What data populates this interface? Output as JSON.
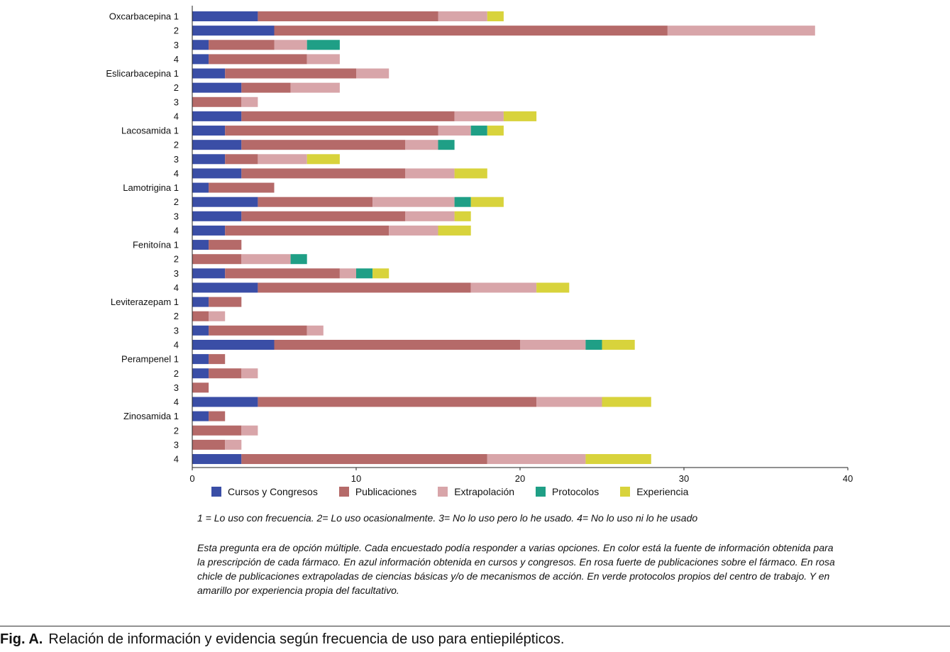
{
  "chart_data": {
    "type": "bar",
    "orientation": "horizontal",
    "stacked": true,
    "xlim": [
      0,
      40
    ],
    "xticks": [
      "0",
      "10",
      "20",
      "30",
      "40"
    ],
    "grid": false,
    "legend_position": "bottom",
    "series": [
      {
        "name": "Cursos y Congresos",
        "color": "#3a4ea6"
      },
      {
        "name": "Publicaciones",
        "color": "#b56a69"
      },
      {
        "name": "Extrapolación",
        "color": "#d8a5a9"
      },
      {
        "name": "Protocolos",
        "color": "#1f9f86"
      },
      {
        "name": "Experiencia",
        "color": "#d8d33c"
      }
    ],
    "groups": [
      {
        "drug": "Oxcarbacepina",
        "rows": [
          {
            "level": "1",
            "values": [
              4,
              11,
              3,
              0,
              1
            ]
          },
          {
            "level": "2",
            "values": [
              5,
              24,
              9,
              0,
              0
            ]
          },
          {
            "level": "3",
            "values": [
              1,
              4,
              2,
              2,
              0
            ]
          },
          {
            "level": "4",
            "values": [
              1,
              6,
              2,
              0,
              0
            ]
          }
        ]
      },
      {
        "drug": "Eslicarbacepina",
        "rows": [
          {
            "level": "1",
            "values": [
              2,
              8,
              2,
              0,
              0
            ]
          },
          {
            "level": "2",
            "values": [
              3,
              3,
              3,
              0,
              0
            ]
          },
          {
            "level": "3",
            "values": [
              0,
              3,
              1,
              0,
              0
            ]
          },
          {
            "level": "4",
            "values": [
              3,
              13,
              3,
              0,
              2
            ]
          }
        ]
      },
      {
        "drug": "Lacosamida",
        "rows": [
          {
            "level": "1",
            "values": [
              2,
              13,
              2,
              1,
              1
            ]
          },
          {
            "level": "2",
            "values": [
              3,
              10,
              2,
              1,
              0
            ]
          },
          {
            "level": "3",
            "values": [
              2,
              2,
              3,
              0,
              2
            ]
          },
          {
            "level": "4",
            "values": [
              3,
              10,
              3,
              0,
              2
            ]
          }
        ]
      },
      {
        "drug": "Lamotrigina",
        "rows": [
          {
            "level": "1",
            "values": [
              1,
              4,
              0,
              0,
              0
            ]
          },
          {
            "level": "2",
            "values": [
              4,
              7,
              5,
              1,
              2
            ]
          },
          {
            "level": "3",
            "values": [
              3,
              10,
              3,
              0,
              1
            ]
          },
          {
            "level": "4",
            "values": [
              2,
              10,
              3,
              0,
              2
            ]
          }
        ]
      },
      {
        "drug": "Fenitoína",
        "rows": [
          {
            "level": "1",
            "values": [
              1,
              2,
              0,
              0,
              0
            ]
          },
          {
            "level": "2",
            "values": [
              0,
              3,
              3,
              1,
              0
            ]
          },
          {
            "level": "3",
            "values": [
              2,
              7,
              1,
              1,
              1
            ]
          },
          {
            "level": "4",
            "values": [
              4,
              13,
              4,
              0,
              2
            ]
          }
        ]
      },
      {
        "drug": "Leviterazepam",
        "rows": [
          {
            "level": "1",
            "values": [
              1,
              2,
              0,
              0,
              0
            ]
          },
          {
            "level": "2",
            "values": [
              0,
              1,
              1,
              0,
              0
            ]
          },
          {
            "level": "3",
            "values": [
              1,
              6,
              1,
              0,
              0
            ]
          },
          {
            "level": "4",
            "values": [
              5,
              15,
              4,
              1,
              2
            ]
          }
        ]
      },
      {
        "drug": "Perampenel",
        "rows": [
          {
            "level": "1",
            "values": [
              1,
              1,
              0,
              0,
              0
            ]
          },
          {
            "level": "2",
            "values": [
              1,
              2,
              1,
              0,
              0
            ]
          },
          {
            "level": "3",
            "values": [
              0,
              1,
              0,
              0,
              0
            ]
          },
          {
            "level": "4",
            "values": [
              4,
              17,
              4,
              0,
              3
            ]
          }
        ]
      },
      {
        "drug": "Zinosamida",
        "rows": [
          {
            "level": "1",
            "values": [
              1,
              1,
              0,
              0,
              0
            ]
          },
          {
            "level": "2",
            "values": [
              0,
              3,
              1,
              0,
              0
            ]
          },
          {
            "level": "3",
            "values": [
              0,
              2,
              1,
              0,
              0
            ]
          },
          {
            "level": "4",
            "values": [
              3,
              15,
              6,
              0,
              4
            ]
          }
        ]
      }
    ]
  },
  "notes": {
    "scale": "1 = Lo uso con frecuencia. 2= Lo uso ocasionalmente. 3= No lo uso pero lo he usado. 4= No lo uso ni lo he usado",
    "description": "Esta pregunta era de opción múltiple. Cada encuestado podía responder a varias opciones. En color está la fuente de información obtenida para la prescripción de cada fármaco. En azul información obtenida en cursos y congresos. En rosa fuerte de publicaciones sobre el fármaco. En rosa chicle de publicaciones extrapoladas de ciencias básicas y/o de mecanismos de acción. En verde protocolos propios del centro de trabajo. Y en amarillo por experiencia propia del facultativo."
  },
  "caption": {
    "label": "Fig. A.",
    "text": "Relación de información y evidencia según frecuencia de uso para entiepilépticos."
  }
}
